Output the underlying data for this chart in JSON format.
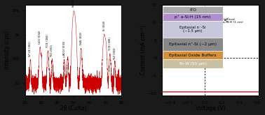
{
  "bg_color": "#1a1a1a",
  "panel_bg": "#ffffff",
  "xrd": {
    "xlim": [
      20,
      80
    ],
    "ylim": [
      3,
      15000
    ],
    "xlabel": "2θ (CuKα)",
    "ylabel": "Intensity (cps)",
    "line_color": "#cc0000",
    "noise_seed": 42,
    "yticks_labels": [
      "10",
      "100",
      "1k",
      "10k"
    ],
    "yticks_vals": [
      10,
      100,
      1000,
      10000
    ]
  },
  "iv": {
    "xlim": [
      -0.5,
      0.62
    ],
    "ylim": [
      -10.5,
      15
    ],
    "xlabel": "Voltage (V)",
    "ylabel": "Current (mA cm⁻²)",
    "jsc": -9.5,
    "j0": 2e-09,
    "n_ideality": 1.8,
    "line_color": "#cc0000",
    "layers": [
      {
        "label": "ITO",
        "color": "#aaaaaa",
        "height": 1
      },
      {
        "label": "p⁺ a-Si:H (15 nm)",
        "color": "#b090cc",
        "height": 1.2
      },
      {
        "label": "Epitaxial n⁻-Si\n(~1.5 μm)",
        "color": "#c8c8dc",
        "height": 2.4
      },
      {
        "label": "Epitaxial n⁺-Si (~2 μm)",
        "color": "#888888",
        "height": 2.0
      },
      {
        "label": "Epitaxial Oxide Buffers",
        "color": "#d4903a",
        "height": 1.3
      },
      {
        "label": "Ni-W (50 μm)",
        "color": "#c8c0a0",
        "height": 1.3
      }
    ],
    "intrinsic_label": "Intrinsic\na-Si:H (1 nm)"
  }
}
